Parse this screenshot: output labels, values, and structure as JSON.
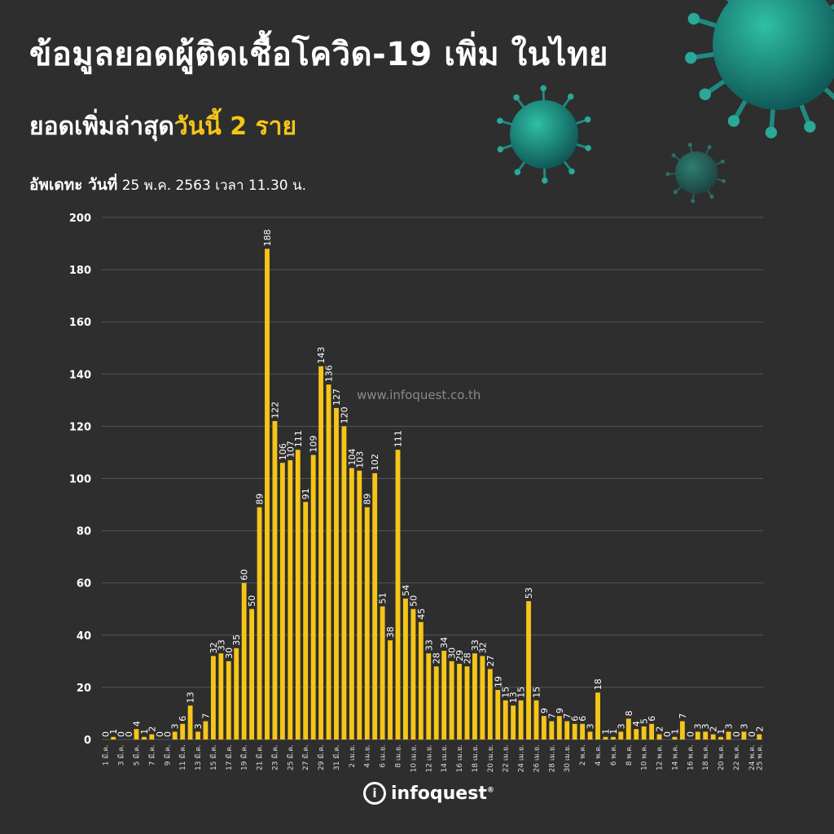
{
  "header": {
    "title": "ข้อมูลยอดผู้ติดเชื้อโควิด-19 เพิ่ม ในไทย",
    "subtitle_prefix": "ยอดเพิ่มล่าสุด",
    "subtitle_highlight": "วันนี้ 2 ราย",
    "update_label": "อัพเดทะ วันที่",
    "update_value": "25 พ.ค. 2563 เวลา 11.30 น."
  },
  "watermark": "www.infoquest.co.th",
  "logo": {
    "mark": "i",
    "text": "infoquest",
    "reg": "®"
  },
  "colors": {
    "background": "#2e2e2e",
    "bar": "#f5c518",
    "highlight": "#f5c518",
    "grid": "#555555"
  },
  "decor": {
    "virus_icons": [
      "virus-icon-large",
      "virus-icon-medium",
      "virus-icon-small"
    ]
  },
  "chart_data": {
    "type": "bar",
    "ylim": [
      0,
      200
    ],
    "yticks": [
      0,
      20,
      40,
      60,
      80,
      100,
      120,
      140,
      160,
      180,
      200
    ],
    "grid": true,
    "tick_labels": [
      {
        "i": 0,
        "text": "1 มี.ค."
      },
      {
        "i": 2,
        "text": "3 มี.ค."
      },
      {
        "i": 4,
        "text": "5 มี.ค."
      },
      {
        "i": 6,
        "text": "7 มี.ค."
      },
      {
        "i": 8,
        "text": "9 มี.ค."
      },
      {
        "i": 10,
        "text": "11 มี.ค."
      },
      {
        "i": 12,
        "text": "13 มี.ค."
      },
      {
        "i": 14,
        "text": "15 มี.ค."
      },
      {
        "i": 16,
        "text": "17 มี.ค."
      },
      {
        "i": 18,
        "text": "19 มี.ค."
      },
      {
        "i": 20,
        "text": "21 มี.ค."
      },
      {
        "i": 22,
        "text": "23 มี.ค."
      },
      {
        "i": 24,
        "text": "25 มี.ค."
      },
      {
        "i": 26,
        "text": "27 มี.ค."
      },
      {
        "i": 28,
        "text": "29 มี.ค."
      },
      {
        "i": 30,
        "text": "31 มี.ค."
      },
      {
        "i": 32,
        "text": "2 เม.ย."
      },
      {
        "i": 34,
        "text": "4 เม.ย."
      },
      {
        "i": 36,
        "text": "6 เม.ย."
      },
      {
        "i": 38,
        "text": "8 เม.ย."
      },
      {
        "i": 40,
        "text": "10 เม.ย."
      },
      {
        "i": 42,
        "text": "12 เม.ย."
      },
      {
        "i": 44,
        "text": "14 เม.ย."
      },
      {
        "i": 46,
        "text": "16 เม.ย."
      },
      {
        "i": 48,
        "text": "18 เม.ย."
      },
      {
        "i": 50,
        "text": "20 เม.ย."
      },
      {
        "i": 52,
        "text": "22 เม.ย."
      },
      {
        "i": 54,
        "text": "24 เม.ย."
      },
      {
        "i": 56,
        "text": "26 เม.ย."
      },
      {
        "i": 58,
        "text": "28 เม.ย."
      },
      {
        "i": 60,
        "text": "30 เม.ย."
      },
      {
        "i": 62,
        "text": "2 พ.ค."
      },
      {
        "i": 64,
        "text": "4 พ.ค."
      },
      {
        "i": 66,
        "text": "6 พ.ค."
      },
      {
        "i": 68,
        "text": "8 พ.ค."
      },
      {
        "i": 70,
        "text": "10 พ.ค."
      },
      {
        "i": 72,
        "text": "12 พ.ค."
      },
      {
        "i": 74,
        "text": "14 พ.ค."
      },
      {
        "i": 76,
        "text": "16 พ.ค."
      },
      {
        "i": 78,
        "text": "18 พ.ค."
      },
      {
        "i": 80,
        "text": "20 พ.ค."
      },
      {
        "i": 82,
        "text": "22 พ.ค."
      },
      {
        "i": 84,
        "text": "24 พ.ค."
      },
      {
        "i": 85,
        "text": "25 พ.ค."
      }
    ],
    "values": [
      0,
      1,
      0,
      0,
      4,
      1,
      2,
      0,
      0,
      3,
      6,
      13,
      3,
      7,
      32,
      33,
      30,
      35,
      60,
      50,
      89,
      188,
      122,
      106,
      107,
      111,
      91,
      109,
      143,
      136,
      127,
      120,
      104,
      103,
      89,
      102,
      51,
      38,
      111,
      54,
      50,
      45,
      33,
      28,
      34,
      30,
      29,
      28,
      33,
      32,
      27,
      19,
      15,
      13,
      15,
      53,
      15,
      9,
      7,
      9,
      7,
      6,
      6,
      3,
      18,
      1,
      1,
      3,
      8,
      4,
      5,
      6,
      2,
      0,
      1,
      7,
      0,
      3,
      3,
      2,
      1,
      3,
      0,
      3,
      0,
      2
    ]
  }
}
